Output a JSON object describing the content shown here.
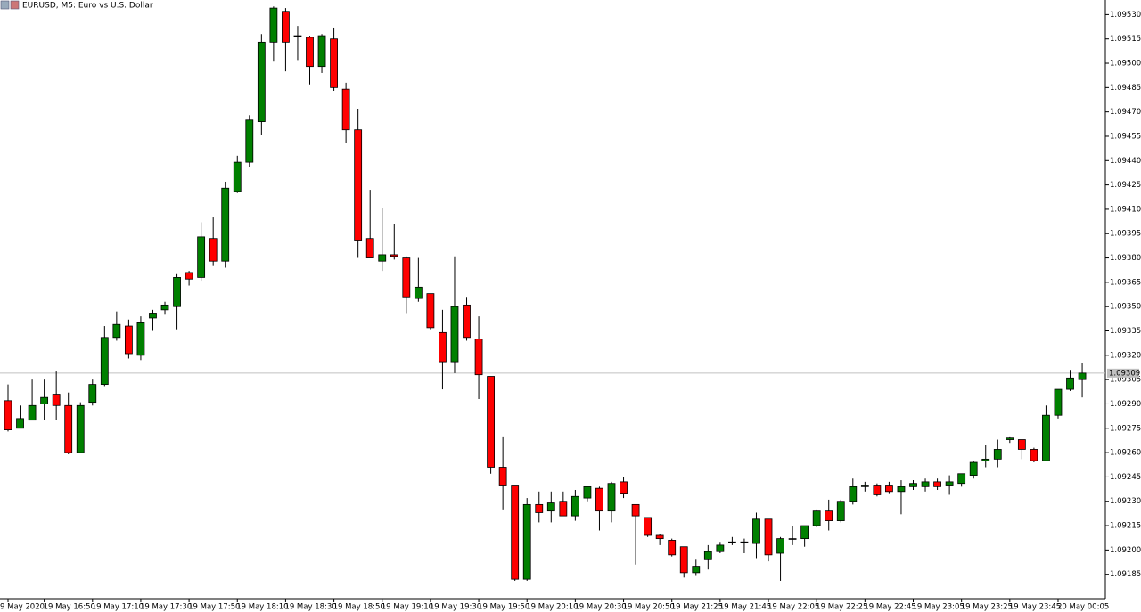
{
  "chart_data": {
    "type": "candlestick",
    "title": "EURUSD, M5:  Euro vs U.S. Dollar",
    "up_color": "#008000",
    "down_color": "#ff0000",
    "categories": [
      "9 May 2020",
      null,
      null,
      "19 May 16:50",
      null,
      null,
      null,
      "19 May 17:10",
      null,
      null,
      null,
      "19 May 17:30",
      null,
      null,
      null,
      "19 May 17:50",
      null,
      null,
      null,
      "19 May 18:10",
      null,
      null,
      null,
      "19 May 18:30",
      null,
      null,
      null,
      "19 May 18:50",
      null,
      null,
      null,
      "19 May 19:10",
      null,
      null,
      null,
      "19 May 19:30",
      null,
      null,
      null,
      "19 May 19:50",
      null,
      null,
      null,
      "19 May 20:10",
      null,
      null,
      null,
      "19 May 20:30",
      null,
      null,
      null,
      "19 May 20:50",
      null,
      null,
      null,
      "19 May 21:25",
      null,
      null,
      null,
      "19 May 21:45",
      null,
      null,
      null,
      "19 May 22:05",
      null,
      null,
      null,
      "19 May 22:25",
      null,
      null,
      null,
      "19 May 22:45",
      null,
      null,
      null,
      "19 May 23:05",
      null,
      null,
      null,
      "19 May 23:25",
      null,
      null,
      null,
      "19 May 23:45",
      null,
      null,
      null,
      "20 May 00:05",
      null,
      null
    ],
    "open": [
      1.09292,
      1.09275,
      1.0928,
      1.0929,
      1.09296,
      1.09289,
      1.0926,
      1.09291,
      1.09302,
      1.09331,
      1.09338,
      1.0932,
      1.09343,
      1.09348,
      1.0935,
      1.09371,
      1.09368,
      1.09392,
      1.09378,
      1.09421,
      1.09439,
      1.09464,
      1.09513,
      1.09532,
      1.09517,
      1.09516,
      1.09498,
      1.09515,
      1.09484,
      1.09459,
      1.09392,
      1.09378,
      1.09382,
      1.0938,
      1.09355,
      1.09358,
      1.09334,
      1.09316,
      1.09351,
      1.0933,
      1.09307,
      1.09251,
      1.0924,
      1.09182,
      1.09228,
      1.09224,
      1.0923,
      1.09221,
      1.09232,
      1.09238,
      1.09224,
      1.09242,
      1.09228,
      1.0922,
      1.09209,
      1.09206,
      1.09202,
      1.09186,
      1.09194,
      1.09199,
      1.09205,
      1.09205,
      1.09204,
      1.09219,
      1.09198,
      1.09207,
      1.09207,
      1.09215,
      1.09224,
      1.09218,
      1.0923,
      1.09239,
      1.0924,
      1.0924,
      1.09236,
      1.09239,
      1.09239,
      1.09242,
      1.0924,
      1.09241,
      1.09246,
      1.09255,
      1.09256,
      1.09268,
      1.09268,
      1.09262,
      1.09255,
      1.09283,
      1.09299,
      1.09305
    ],
    "high": [
      1.09302,
      1.09289,
      1.09305,
      1.09305,
      1.0931,
      1.09297,
      1.09291,
      1.09305,
      1.09338,
      1.09347,
      1.09342,
      1.09344,
      1.09348,
      1.09353,
      1.0937,
      1.09372,
      1.09402,
      1.09405,
      1.09427,
      1.09443,
      1.09468,
      1.09518,
      1.09535,
      1.09534,
      1.09523,
      1.09517,
      1.09518,
      1.09522,
      1.09488,
      1.09472,
      1.09422,
      1.09411,
      1.09401,
      1.09381,
      1.0938,
      1.09358,
      1.09348,
      1.09381,
      1.09356,
      1.09344,
      1.09307,
      1.0927,
      1.0924,
      1.09232,
      1.09236,
      1.09236,
      1.09236,
      1.09237,
      1.09239,
      1.09239,
      1.09242,
      1.09245,
      1.09228,
      1.0922,
      1.0921,
      1.09207,
      1.09202,
      1.09194,
      1.09203,
      1.09205,
      1.09208,
      1.09207,
      1.09223,
      1.09219,
      1.09208,
      1.09215,
      1.09215,
      1.09225,
      1.09231,
      1.09231,
      1.09244,
      1.09242,
      1.09241,
      1.09242,
      1.09243,
      1.09243,
      1.09244,
      1.09244,
      1.09246,
      1.09247,
      1.09255,
      1.09265,
      1.09268,
      1.0927,
      1.09268,
      1.09263,
      1.09289,
      1.09299,
      1.09311,
      1.09315
    ],
    "low": [
      1.09273,
      1.09275,
      1.0928,
      1.0928,
      1.0928,
      1.09259,
      1.0926,
      1.09289,
      1.09301,
      1.09329,
      1.09318,
      1.09317,
      1.09335,
      1.09345,
      1.09336,
      1.09363,
      1.09366,
      1.09375,
      1.09374,
      1.0942,
      1.09436,
      1.09456,
      1.09501,
      1.09495,
      1.09502,
      1.09487,
      1.09494,
      1.09483,
      1.09451,
      1.0938,
      1.0938,
      1.09372,
      1.09379,
      1.09346,
      1.09353,
      1.09336,
      1.09299,
      1.09309,
      1.09329,
      1.09293,
      1.09247,
      1.09225,
      1.09181,
      1.09181,
      1.09217,
      1.09217,
      1.09221,
      1.09218,
      1.0923,
      1.09212,
      1.09217,
      1.09232,
      1.09191,
      1.09208,
      1.09203,
      1.09196,
      1.09183,
      1.09184,
      1.09188,
      1.09198,
      1.09203,
      1.09198,
      1.09195,
      1.09193,
      1.09181,
      1.09203,
      1.09202,
      1.09214,
      1.09212,
      1.09217,
      1.09228,
      1.09236,
      1.09233,
      1.09235,
      1.09222,
      1.09237,
      1.09236,
      1.09237,
      1.09234,
      1.09239,
      1.09244,
      1.09251,
      1.09251,
      1.09266,
      1.09256,
      1.09254,
      1.09255,
      1.09281,
      1.09298,
      1.09294
    ],
    "close": [
      1.09274,
      1.09281,
      1.09289,
      1.09294,
      1.09289,
      1.0926,
      1.09289,
      1.09302,
      1.09331,
      1.09339,
      1.09321,
      1.0934,
      1.09346,
      1.09351,
      1.09368,
      1.09367,
      1.09393,
      1.09378,
      1.09423,
      1.09439,
      1.09465,
      1.09513,
      1.09534,
      1.09513,
      1.09517,
      1.09498,
      1.09517,
      1.09485,
      1.09459,
      1.09391,
      1.0938,
      1.09382,
      1.09381,
      1.09356,
      1.09362,
      1.09337,
      1.09316,
      1.0935,
      1.09331,
      1.09308,
      1.09251,
      1.0924,
      1.09182,
      1.09228,
      1.09223,
      1.09229,
      1.09221,
      1.09233,
      1.09239,
      1.09224,
      1.09241,
      1.09235,
      1.09221,
      1.09209,
      1.09207,
      1.09197,
      1.09186,
      1.0919,
      1.09199,
      1.09203,
      1.09205,
      1.09205,
      1.09219,
      1.09197,
      1.09207,
      1.09207,
      1.09215,
      1.09224,
      1.09218,
      1.0923,
      1.09239,
      1.0924,
      1.09234,
      1.09236,
      1.09239,
      1.09241,
      1.09242,
      1.09239,
      1.09242,
      1.09247,
      1.09254,
      1.09256,
      1.09262,
      1.09269,
      1.09262,
      1.09255,
      1.09283,
      1.09299,
      1.09306,
      1.09309
    ],
    "last_price": {
      "value": 1.09309,
      "label": "1.09309"
    },
    "ylim": [
      1.0917,
      1.09539
    ],
    "yticks": [
      {
        "value": 1.0953,
        "label": "1.09530"
      },
      {
        "value": 1.09515,
        "label": "1.09515"
      },
      {
        "value": 1.095,
        "label": "1.09500"
      },
      {
        "value": 1.09485,
        "label": "1.09485"
      },
      {
        "value": 1.0947,
        "label": "1.09470"
      },
      {
        "value": 1.09455,
        "label": "1.09455"
      },
      {
        "value": 1.0944,
        "label": "1.09440"
      },
      {
        "value": 1.09425,
        "label": "1.09425"
      },
      {
        "value": 1.0941,
        "label": "1.09410"
      },
      {
        "value": 1.09395,
        "label": "1.09395"
      },
      {
        "value": 1.0938,
        "label": "1.09380"
      },
      {
        "value": 1.09365,
        "label": "1.09365"
      },
      {
        "value": 1.0935,
        "label": "1.09350"
      },
      {
        "value": 1.09335,
        "label": "1.09335"
      },
      {
        "value": 1.0932,
        "label": "1.09320"
      },
      {
        "value": 1.09305,
        "label": "1.09305"
      },
      {
        "value": 1.0929,
        "label": "1.09290"
      },
      {
        "value": 1.09275,
        "label": "1.09275"
      },
      {
        "value": 1.0926,
        "label": "1.09260"
      },
      {
        "value": 1.09245,
        "label": "1.09245"
      },
      {
        "value": 1.0923,
        "label": "1.09230"
      },
      {
        "value": 1.09215,
        "label": "1.09215"
      },
      {
        "value": 1.092,
        "label": "1.09200"
      },
      {
        "value": 1.09185,
        "label": "1.09185"
      }
    ]
  }
}
